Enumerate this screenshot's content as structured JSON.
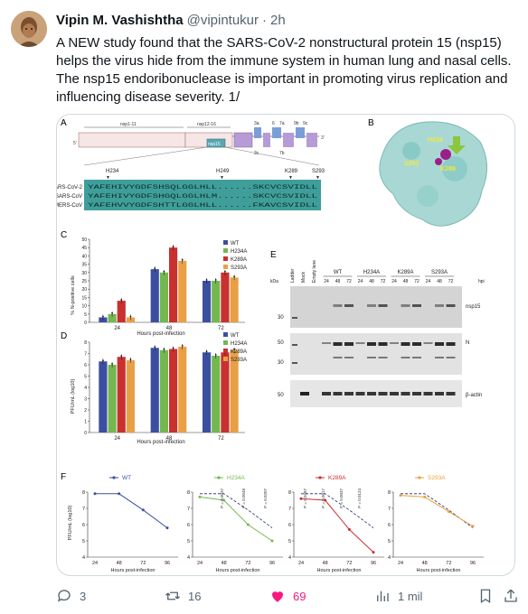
{
  "tweet": {
    "display_name": "Vipin M. Vashishtha",
    "handle": "@vipintukur",
    "separator": "·",
    "timestamp": "2h",
    "text": "A NEW study found that the SARS-CoV-2 nonstructural protein 15 (nsp15) helps the virus hide from the immune system in human lung and nasal cells. The nsp15 endoribonuclease is important in promoting virus replication and influencing disease severity. 1/"
  },
  "actions": {
    "reply_count": "3",
    "retweet_count": "16",
    "like_count": "69",
    "view_count": "1 mil"
  },
  "colors": {
    "like_active": "#f91880",
    "wt": "#3b4fa0",
    "h234a": "#73b84f",
    "k289a": "#c93030",
    "s293a": "#e8a045",
    "domain_teal": "#3f9e99"
  },
  "figure": {
    "panel_labels": [
      "A",
      "B",
      "C",
      "D",
      "E",
      "F"
    ],
    "panel_a": {
      "gene_labels": [
        "nsp1-11",
        "nsp12-16"
      ],
      "nsp15_label": "nsp15",
      "orf_labels": [
        "3a",
        "6",
        "7a",
        "9b",
        "9c",
        "3c",
        "7b"
      ],
      "five_prime": "5'",
      "three_prime": "3'",
      "markers": [
        "H234",
        "H249",
        "K289",
        "S293"
      ],
      "alignment": [
        {
          "name": "SARS-CoV-2",
          "seq": "YAFEHIVYGDFSHSQLGGLHLL......SKCVCSVIDLL"
        },
        {
          "name": "SARS-CoV",
          "seq": "YAFEHIVYGDFSHGQLGGLHLM......SKCVCSVIDLL"
        },
        {
          "name": "MERS-CoV",
          "seq": "YAFEHVVYGDFSHTTLGGLHLL......FKAVCSVIDLL"
        }
      ]
    },
    "panel_b": {
      "labels": [
        "H234",
        "S293",
        "K289"
      ]
    },
    "panel_c": {
      "ylabel": "% N-positive cells",
      "xlabel": "Hours post-infection",
      "yticks": [
        "0",
        "5",
        "10",
        "15",
        "20",
        "25",
        "30",
        "35",
        "40",
        "45",
        "50"
      ],
      "legend": [
        "WT",
        "H234A",
        "K289A",
        "S293A"
      ]
    },
    "panel_d": {
      "ylabel": "PFU/mL (log10)",
      "xlabel": "Hours post-infection",
      "yticks": [
        "0",
        "1",
        "2",
        "3",
        "4",
        "5",
        "6",
        "7",
        "8"
      ],
      "legend": [
        "WT",
        "H234A",
        "K289A",
        "S293A"
      ]
    },
    "panel_e": {
      "lane_labels": [
        "Ladder",
        "Mock",
        "Empty lane"
      ],
      "group_labels": [
        "WT",
        "H234A",
        "K289A",
        "S293A"
      ],
      "timepoints": [
        "24",
        "48",
        "72",
        "24",
        "48",
        "72",
        "24",
        "48",
        "72",
        "24",
        "48",
        "72"
      ],
      "hpi_label": "hpi",
      "kda_label": "kDa",
      "blot1_marker": "30",
      "blot1_label": "nsp15",
      "blot2_markers": [
        "50",
        "30"
      ],
      "blot2_label": "N",
      "blot3_marker": "50",
      "blot3_label": "β-actin"
    },
    "panel_f": {
      "titles": [
        "WT",
        "H234A",
        "K289A",
        "S293A"
      ],
      "ylabel": "PFU/mL (log10)",
      "xlabel": "Hours post-infection",
      "xticks": [
        "24",
        "48",
        "72",
        "96"
      ],
      "yticks": [
        "4",
        "5",
        "6",
        "7",
        "8"
      ],
      "pvalues_h234a": [
        "P = 0.0037",
        "P = 0.0048",
        "P = 0.0207"
      ],
      "pvalues_k289a": [
        "P = 0.0387",
        "P = 0.0017",
        "P = 0.0037",
        "P = 0.0124"
      ]
    }
  },
  "chart_data": [
    {
      "type": "bar",
      "panel": "C",
      "categories": [
        "24",
        "48",
        "72"
      ],
      "xlabel": "Hours post-infection",
      "ylabel": "% N-positive cells",
      "ylim": [
        0,
        50
      ],
      "series": [
        {
          "name": "WT",
          "values": [
            3,
            32,
            25
          ]
        },
        {
          "name": "H234A",
          "values": [
            5,
            30,
            25
          ]
        },
        {
          "name": "K289A",
          "values": [
            13,
            45,
            30
          ]
        },
        {
          "name": "S293A",
          "values": [
            3,
            37,
            27
          ]
        }
      ]
    },
    {
      "type": "bar",
      "panel": "D",
      "categories": [
        "24",
        "48",
        "72"
      ],
      "xlabel": "Hours post-infection",
      "ylabel": "PFU/mL (log10)",
      "ylim": [
        0,
        8
      ],
      "series": [
        {
          "name": "WT",
          "values": [
            6.3,
            7.5,
            7.1
          ]
        },
        {
          "name": "H234A",
          "values": [
            6.0,
            7.3,
            6.8
          ]
        },
        {
          "name": "K289A",
          "values": [
            6.7,
            7.4,
            7.1
          ]
        },
        {
          "name": "S293A",
          "values": [
            6.4,
            7.6,
            7.3
          ]
        }
      ]
    },
    {
      "type": "line",
      "panel": "F",
      "x": [
        24,
        48,
        72,
        96
      ],
      "xlabel": "Hours post-infection",
      "ylabel": "PFU/mL (log10)",
      "ylim": [
        4,
        8
      ],
      "series": [
        {
          "name": "WT",
          "values": [
            7.9,
            7.9,
            6.9,
            5.8
          ]
        },
        {
          "name": "H234A",
          "values": [
            7.7,
            7.5,
            6.0,
            5.0
          ]
        },
        {
          "name": "K289A",
          "values": [
            7.6,
            7.5,
            5.7,
            4.3
          ]
        },
        {
          "name": "S293A",
          "values": [
            7.8,
            7.7,
            6.8,
            5.9
          ]
        }
      ]
    }
  ]
}
